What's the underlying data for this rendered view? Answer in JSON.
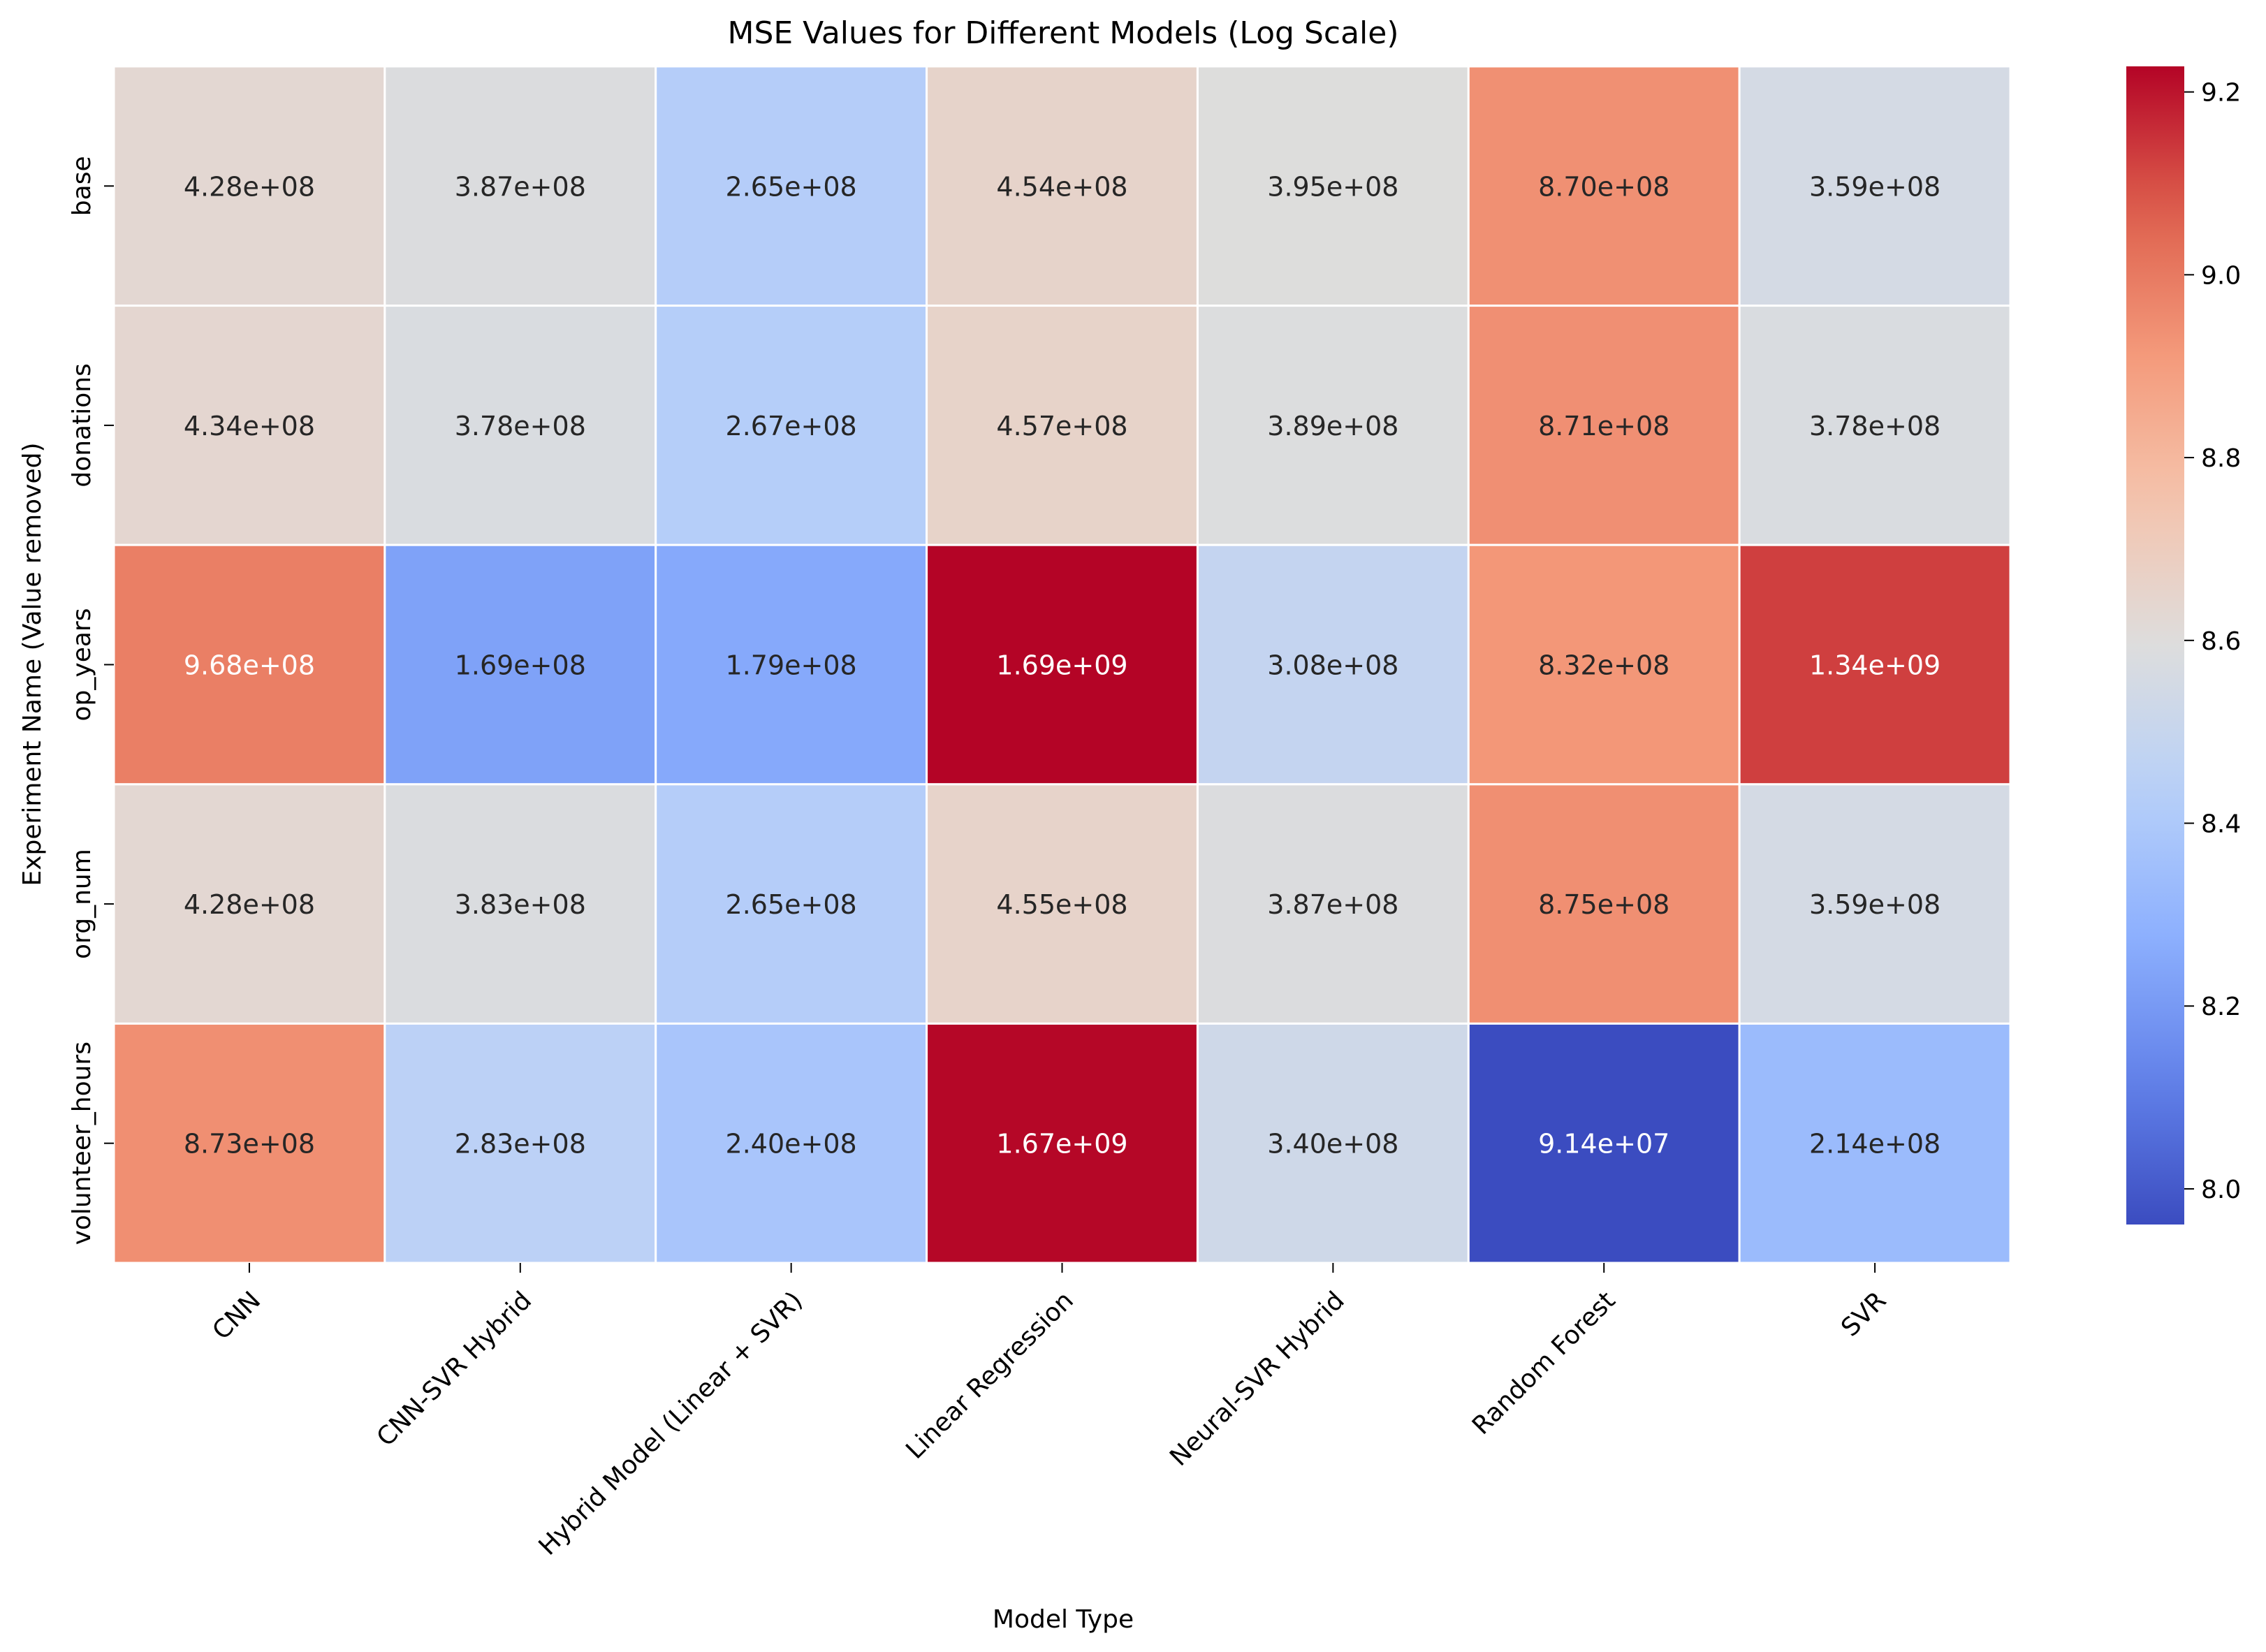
{
  "chart_data": {
    "type": "heatmap",
    "title": "MSE Values for Different Models (Log Scale)",
    "xlabel": "Model Type",
    "ylabel": "Experiment Name (Value removed)",
    "columns": [
      "CNN",
      "CNN-SVR Hybrid",
      "Hybrid Model (Linear + SVR)",
      "Linear Regression",
      "Neural-SVR Hybrid",
      "Random Forest",
      "SVR"
    ],
    "rows": [
      "base",
      "donations",
      "op_years",
      "org_num",
      "volunteer_hours"
    ],
    "values": [
      [
        428000000,
        387000000,
        265000000,
        454000000,
        395000000,
        870000000,
        359000000
      ],
      [
        434000000,
        378000000,
        267000000,
        457000000,
        389000000,
        871000000,
        378000000
      ],
      [
        968000000,
        169000000,
        179000000,
        1690000000,
        308000000,
        832000000,
        1340000000
      ],
      [
        428000000,
        383000000,
        265000000,
        455000000,
        387000000,
        875000000,
        359000000
      ],
      [
        873000000,
        283000000,
        240000000,
        1670000000,
        340000000,
        91400000,
        214000000
      ]
    ],
    "annotations": [
      [
        "4.28e+08",
        "3.87e+08",
        "2.65e+08",
        "4.54e+08",
        "3.95e+08",
        "8.70e+08",
        "3.59e+08"
      ],
      [
        "4.34e+08",
        "3.78e+08",
        "2.67e+08",
        "4.57e+08",
        "3.89e+08",
        "8.71e+08",
        "3.78e+08"
      ],
      [
        "9.68e+08",
        "1.69e+08",
        "1.79e+08",
        "1.69e+09",
        "3.08e+08",
        "8.32e+08",
        "1.34e+09"
      ],
      [
        "4.28e+08",
        "3.83e+08",
        "2.65e+08",
        "4.55e+08",
        "3.87e+08",
        "8.75e+08",
        "3.59e+08"
      ],
      [
        "8.73e+08",
        "2.83e+08",
        "2.40e+08",
        "1.67e+09",
        "3.40e+08",
        "9.14e+07",
        "2.14e+08"
      ]
    ],
    "color_scale": "log10",
    "colormap": "coolwarm",
    "colorbar": {
      "range": [
        7.961,
        9.228
      ],
      "ticks": [
        "8.0",
        "8.2",
        "8.4",
        "8.6",
        "8.8",
        "9.0",
        "9.2"
      ]
    },
    "colors": {
      "cell_border": "#ffffff",
      "text_dark": "#262626",
      "text_light": "#ffffff"
    }
  }
}
